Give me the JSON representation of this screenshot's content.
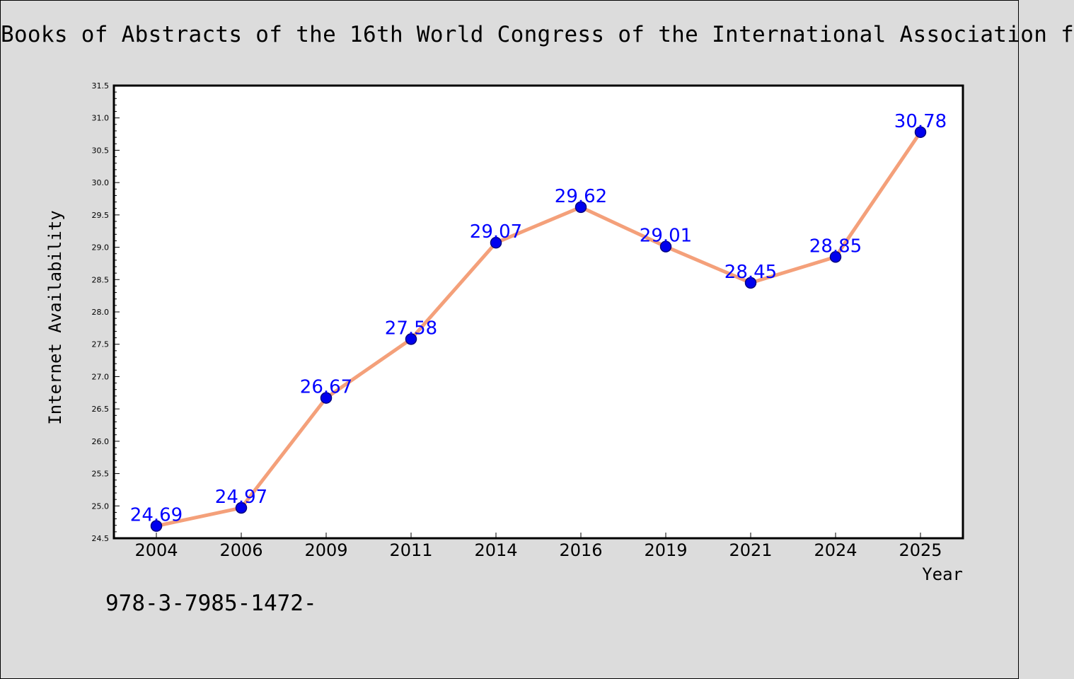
{
  "page": {
    "title": "Books of Abstracts of the 16th World Congress of the International Association f",
    "footer_text": "978-3-7985-1472-"
  },
  "colors": {
    "background": "#dcdcdc",
    "plot_background": "#ffffff",
    "line": "#f4a07a",
    "marker_fill": "#0000ee",
    "marker_edge": "#000080",
    "data_label": "#0000ff",
    "axis": "#000000"
  },
  "chart_data": {
    "type": "line",
    "title": "Books of Abstracts of the 16th World Congress of the International Association f",
    "xlabel": "Year",
    "ylabel": "Internet Availability",
    "categories": [
      "2004",
      "2006",
      "2009",
      "2011",
      "2014",
      "2016",
      "2019",
      "2021",
      "2024",
      "2025"
    ],
    "series": [
      {
        "values": [
          24.69,
          24.97,
          26.67,
          27.58,
          29.07,
          29.62,
          29.01,
          28.45,
          28.85,
          30.78
        ],
        "labels": [
          "24.69",
          "24.97",
          "26.67",
          "27.58",
          "29.07",
          "29.62",
          "29.01",
          "28.45",
          "28.85",
          "30.78"
        ]
      }
    ],
    "ylim": [
      24.5,
      31.5
    ],
    "yticks": [
      "24.5",
      "25.0",
      "25.5",
      "26.0",
      "26.5",
      "27.0",
      "27.5",
      "28.0",
      "28.5",
      "29.0",
      "29.5",
      "30.0",
      "30.5",
      "31.0",
      "31.5"
    ],
    "minor_ticks_per_major": 5,
    "grid": false,
    "legend": "none",
    "data_labels": true,
    "markers": "circle"
  }
}
